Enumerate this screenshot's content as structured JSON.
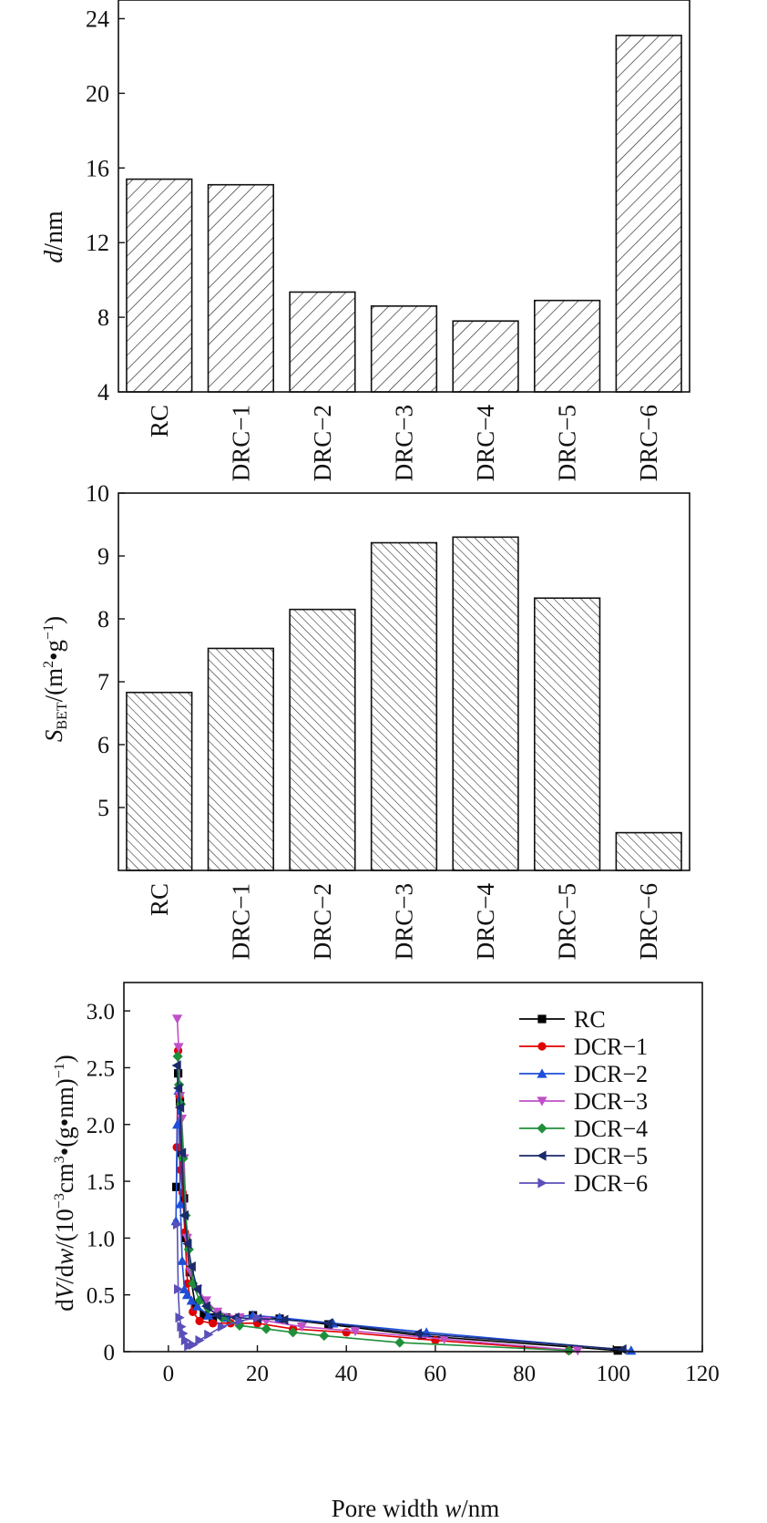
{
  "chart_data": [
    {
      "id": "pore-diameter",
      "type": "bar",
      "ylabel": {
        "italic": "d",
        "rest": "/nm"
      },
      "ylim": [
        4,
        25
      ],
      "yticks": [
        4,
        8,
        12,
        16,
        20,
        24
      ],
      "categories": [
        "RC",
        "DRC−1",
        "DRC−2",
        "DRC−3",
        "DRC−4",
        "DRC−5",
        "DRC−6"
      ],
      "values": [
        15.4,
        15.1,
        9.35,
        8.6,
        7.8,
        8.9,
        23.1
      ],
      "pattern": "backslash-hatch"
    },
    {
      "id": "surface-area",
      "type": "bar",
      "ylabel": {
        "main": "S",
        "sub": "BET",
        "rest": "/(m",
        "sup1": "2",
        "mid": "•g",
        "sup2": "−1",
        "end": ")"
      },
      "ylim": [
        4.0,
        10
      ],
      "yticks": [
        5,
        6,
        7,
        8,
        9,
        10
      ],
      "categories": [
        "RC",
        "DRC−1",
        "DRC−2",
        "DRC−3",
        "DRC−4",
        "DRC−5",
        "DRC−6"
      ],
      "values": [
        6.83,
        7.53,
        8.15,
        9.21,
        9.3,
        8.33,
        4.6
      ],
      "pattern": "slash-hatch"
    },
    {
      "id": "pore-distribution",
      "type": "line",
      "xlabel": {
        "rest": "Pore width ",
        "italic": "w",
        "end": "/nm"
      },
      "ylabel": {
        "a": "d",
        "b": "V",
        "c": "/d",
        "d": "w",
        "e": "/(10",
        "sup1": "−3",
        "f": "cm",
        "sup2": "3",
        "g": "•(g•nm)",
        "sup3": "−1",
        "h": ")"
      },
      "xlim": [
        -10,
        120
      ],
      "ylim": [
        0,
        3.25
      ],
      "xticks": [
        0,
        20,
        40,
        60,
        80,
        100,
        120
      ],
      "yticks": [
        0,
        0.5,
        1.0,
        1.5,
        2.0,
        2.5,
        3.0
      ],
      "ytick_labels": [
        "0",
        "0.5",
        "1.0",
        "1.5",
        "2.0",
        "2.5",
        "3.0"
      ],
      "series": [
        {
          "name": "RC",
          "color": "#000000",
          "marker": "square",
          "x": [
            1.8,
            2.2,
            2.6,
            3.0,
            3.5,
            4.0,
            4.8,
            6,
            8,
            10,
            13,
            19,
            25,
            36,
            57,
            101
          ],
          "y": [
            1.45,
            2.45,
            2.2,
            1.75,
            1.35,
            1.0,
            0.7,
            0.42,
            0.32,
            0.3,
            0.3,
            0.32,
            0.29,
            0.24,
            0.14,
            0.01
          ]
        },
        {
          "name": "DCR−1",
          "color": "#e00000",
          "marker": "circle",
          "x": [
            1.9,
            2.2,
            2.5,
            2.8,
            3.2,
            3.7,
            4.3,
            5.5,
            7,
            10,
            14,
            20,
            28,
            40,
            60,
            90
          ],
          "y": [
            1.8,
            2.65,
            2.25,
            1.6,
            1.4,
            1.05,
            0.6,
            0.35,
            0.27,
            0.25,
            0.25,
            0.25,
            0.2,
            0.17,
            0.1,
            0.01
          ]
        },
        {
          "name": "DCR−2",
          "color": "#1f4fd8",
          "marker": "triangle-up",
          "x": [
            1.7,
            2.0,
            2.3,
            2.7,
            3.1,
            3.6,
            4.2,
            5.2,
            6.5,
            9,
            13,
            19,
            25,
            37,
            58,
            104
          ],
          "y": [
            1.15,
            2.0,
            2.3,
            1.3,
            0.8,
            0.55,
            0.5,
            0.45,
            0.4,
            0.32,
            0.3,
            0.32,
            0.3,
            0.25,
            0.17,
            0.01
          ]
        },
        {
          "name": "DCR−3",
          "color": "#c050c8",
          "marker": "triangle-down",
          "x": [
            2.0,
            2.3,
            2.6,
            3.0,
            3.5,
            4.2,
            5,
            6.5,
            8.5,
            11,
            16,
            22,
            30,
            42,
            62,
            92
          ],
          "y": [
            2.93,
            2.68,
            2.25,
            2.05,
            1.7,
            1.0,
            0.7,
            0.55,
            0.45,
            0.35,
            0.3,
            0.27,
            0.22,
            0.18,
            0.11,
            0.01
          ]
        },
        {
          "name": "DCR−4",
          "color": "#1f8f3a",
          "marker": "diamond",
          "x": [
            2.1,
            2.4,
            2.8,
            3.3,
            3.9,
            4.6,
            5.5,
            7,
            9,
            12,
            16,
            22,
            28,
            35,
            52,
            90
          ],
          "y": [
            2.6,
            2.35,
            2.18,
            1.7,
            1.2,
            0.9,
            0.6,
            0.45,
            0.38,
            0.3,
            0.23,
            0.2,
            0.17,
            0.14,
            0.08,
            0.01
          ]
        },
        {
          "name": "DCR−5",
          "color": "#1a2a6a",
          "marker": "triangle-left",
          "x": [
            1.9,
            2.2,
            2.6,
            3.0,
            3.6,
            4.3,
            5.2,
            6.5,
            8.5,
            11,
            15,
            20,
            26,
            36,
            56,
            102
          ],
          "y": [
            2.52,
            2.32,
            2.15,
            1.75,
            1.2,
            0.95,
            0.75,
            0.55,
            0.4,
            0.32,
            0.3,
            0.29,
            0.28,
            0.25,
            0.16,
            0.02
          ]
        },
        {
          "name": "DCR−6",
          "color": "#5a4fb8",
          "marker": "triangle-right",
          "x": [
            2.0,
            2.2,
            2.5,
            2.9,
            3.3,
            3.8,
            4.5,
            5.5,
            7,
            9,
            12,
            16,
            20
          ],
          "y": [
            1.12,
            0.55,
            0.3,
            0.22,
            0.16,
            0.1,
            0.05,
            0.06,
            0.1,
            0.15,
            0.22,
            0.27,
            0.3
          ]
        }
      ]
    }
  ]
}
